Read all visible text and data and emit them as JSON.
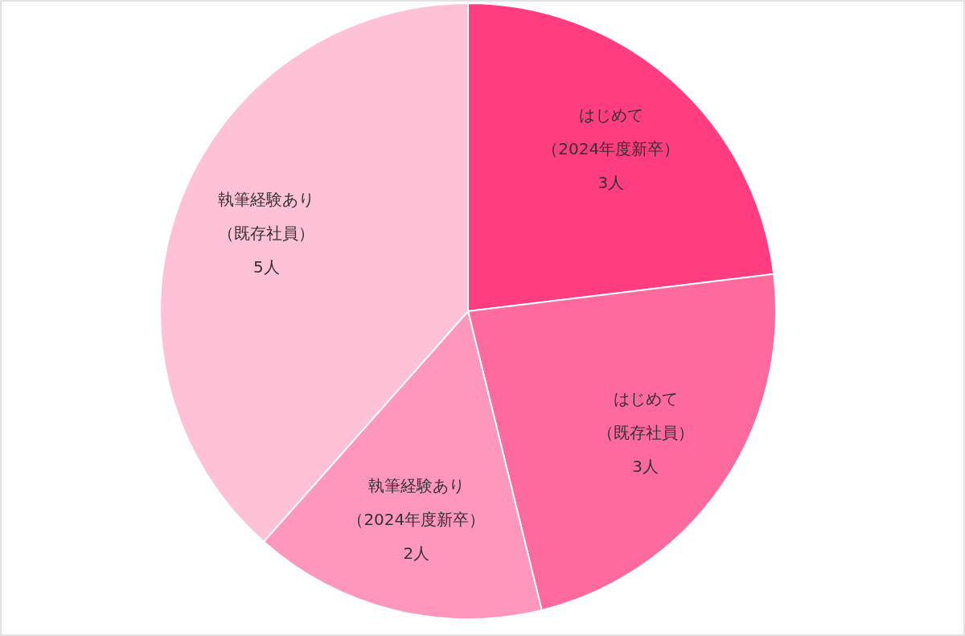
{
  "chart_data": {
    "type": "pie",
    "categories": [
      "はじめて（2024年度新卒）",
      "はじめて（既存社員）",
      "執筆経験あり（2024年度新卒）",
      "執筆経験あり（既存社員）"
    ],
    "values": [
      3,
      3,
      2,
      5
    ],
    "colors": [
      "#ff3d7f",
      "#ff6a9e",
      "#ff96bc",
      "#ffc1d6"
    ],
    "value_labels": [
      "3人",
      "3人",
      "2人",
      "5人"
    ],
    "legend": false
  }
}
